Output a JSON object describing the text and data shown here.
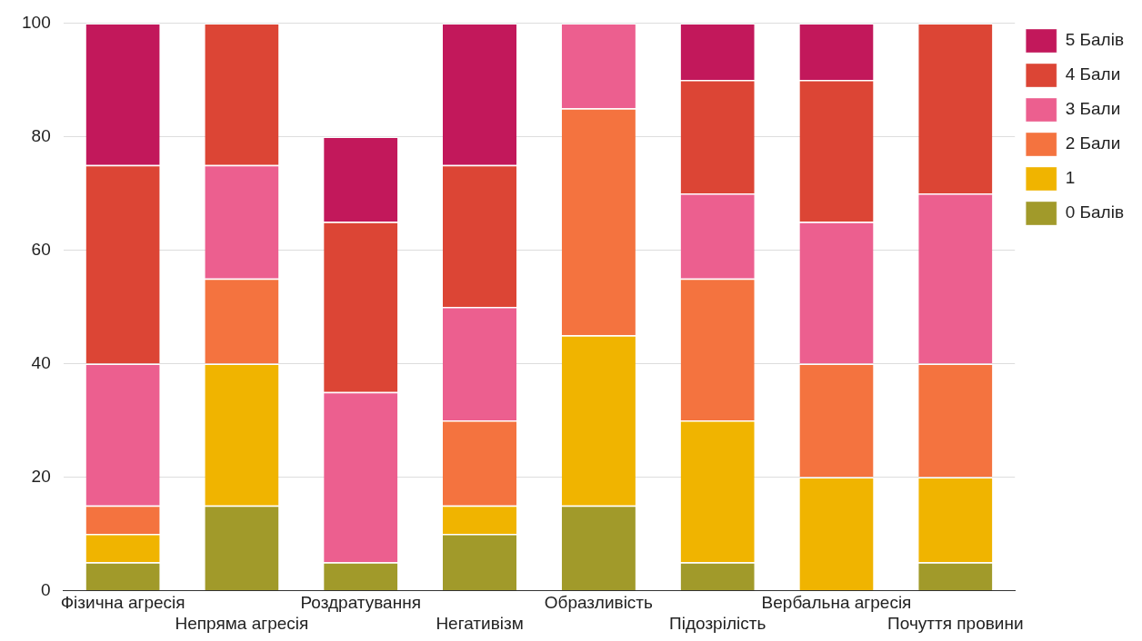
{
  "chart_data": {
    "type": "bar",
    "stacked": true,
    "categories": [
      "Фізична агресія",
      "Непряма агресія",
      "Роздратування",
      "Негативізм",
      "Образливість",
      "Підозрілість",
      "Вербальна агресія",
      "Почуття провини"
    ],
    "series": [
      {
        "name": "0 Балів",
        "color": "#a19a2a",
        "values": [
          5,
          15,
          5,
          10,
          15,
          5,
          0,
          5
        ]
      },
      {
        "name": "1",
        "color": "#f0b400",
        "values": [
          5,
          25,
          0,
          5,
          30,
          25,
          20,
          15
        ]
      },
      {
        "name": "2 Бали",
        "color": "#f4733f",
        "values": [
          5,
          15,
          0,
          15,
          40,
          25,
          20,
          20
        ]
      },
      {
        "name": "3 Бали",
        "color": "#ec5f8f",
        "values": [
          25,
          20,
          30,
          20,
          15,
          15,
          25,
          30
        ]
      },
      {
        "name": "4 Бали",
        "color": "#dc4535",
        "values": [
          35,
          25,
          30,
          25,
          0,
          20,
          25,
          30
        ]
      },
      {
        "name": "5 Балів",
        "color": "#c2185b",
        "values": [
          25,
          0,
          15,
          25,
          0,
          10,
          10,
          0
        ]
      }
    ],
    "ylim": [
      0,
      100
    ],
    "yticks": [
      0,
      20,
      40,
      60,
      80,
      100
    ],
    "grid": "y",
    "legend": "right"
  }
}
